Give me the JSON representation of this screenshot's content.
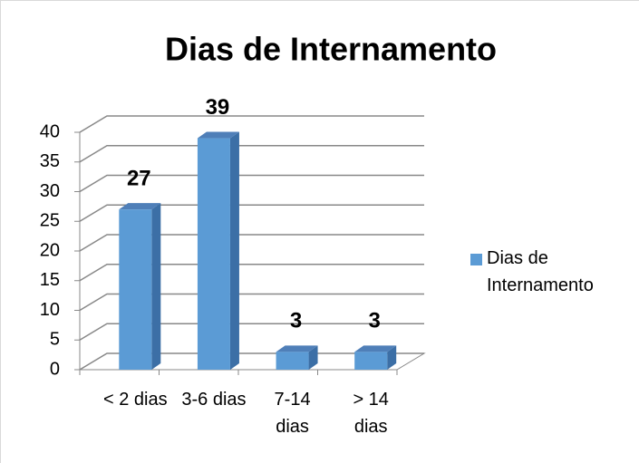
{
  "chart_data": {
    "type": "bar",
    "title": "Dias de Internamento",
    "categories": [
      "< 2 dias",
      "3-6 dias",
      "7-14 dias",
      "> 14 dias"
    ],
    "series": [
      {
        "name": "Dias de Internamento",
        "color": "#5b9bd5",
        "values": [
          27,
          39,
          3,
          3
        ]
      }
    ],
    "ylim": [
      0,
      40
    ],
    "yticks": [
      0,
      5,
      10,
      15,
      20,
      25,
      30,
      35,
      40
    ],
    "grid": true,
    "legend": "right"
  }
}
